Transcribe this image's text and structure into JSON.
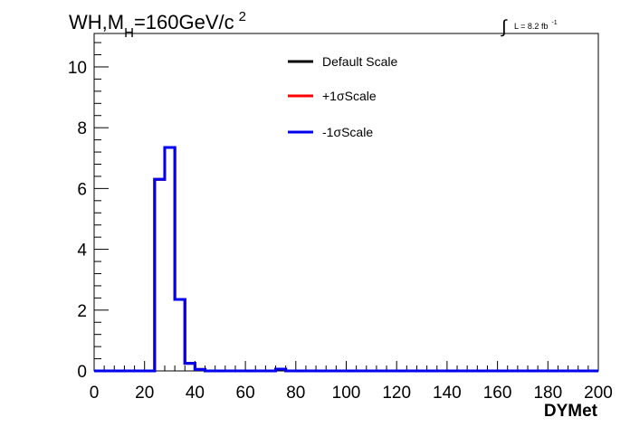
{
  "chart_data": {
    "type": "line",
    "style": "step-histogram",
    "title_parts": {
      "main": "WH,M",
      "sub": "H",
      "rest": "=160GeV/c",
      "sup": "2"
    },
    "lumi_parts": {
      "integral": "∫",
      "text": "L = 8.2 fb",
      "sup": "-1"
    },
    "xlabel": "DYMet",
    "ylabel": "",
    "xlim": [
      0,
      200
    ],
    "ylim": [
      0,
      11.1
    ],
    "x_ticks": [
      0,
      20,
      40,
      60,
      80,
      100,
      120,
      140,
      160,
      180,
      200
    ],
    "x_tick_labels": [
      "0",
      "20",
      "40",
      "60",
      "80",
      "100",
      "120",
      "140",
      "160",
      "180",
      "200"
    ],
    "y_ticks": [
      0,
      2,
      4,
      6,
      8,
      10
    ],
    "y_tick_labels": [
      "0",
      "2",
      "4",
      "6",
      "8",
      "10"
    ],
    "bin_edges": [
      0,
      4,
      8,
      12,
      16,
      20,
      24,
      28,
      32,
      36,
      40,
      44,
      48,
      52,
      56,
      60,
      64,
      68,
      72,
      76,
      80,
      84,
      88,
      92,
      96,
      100,
      104,
      108,
      112,
      116,
      120,
      124,
      128,
      132,
      136,
      140,
      144,
      148,
      152,
      156,
      160,
      164,
      168,
      172,
      176,
      180,
      184,
      188,
      192,
      196,
      200
    ],
    "series": [
      {
        "name": "Default Scale",
        "color": "#000000",
        "values": [
          0,
          0,
          0,
          0,
          0,
          0,
          6.3,
          7.35,
          2.35,
          0.25,
          0.05,
          0,
          0,
          0,
          0,
          0,
          0,
          0,
          0.06,
          0,
          0,
          0,
          0,
          0,
          0,
          0,
          0,
          0,
          0,
          0,
          0,
          0,
          0,
          0,
          0,
          0,
          0,
          0,
          0,
          0,
          0,
          0,
          0,
          0,
          0,
          0,
          0,
          0,
          0,
          0
        ]
      },
      {
        "name": "+1σScale",
        "color": "#ff0000",
        "values": [
          0,
          0,
          0,
          0,
          0,
          0,
          6.3,
          7.35,
          2.35,
          0.25,
          0.05,
          0,
          0,
          0,
          0,
          0,
          0,
          0,
          0.06,
          0,
          0,
          0,
          0,
          0,
          0,
          0,
          0,
          0,
          0,
          0,
          0,
          0,
          0,
          0,
          0,
          0,
          0,
          0,
          0,
          0,
          0,
          0,
          0,
          0,
          0,
          0,
          0,
          0,
          0,
          0
        ]
      },
      {
        "name": "-1σScale",
        "color": "#0000ee",
        "values": [
          0,
          0,
          0,
          0,
          0,
          0,
          6.3,
          7.35,
          2.35,
          0.25,
          0.05,
          0,
          0,
          0,
          0,
          0,
          0,
          0,
          0.06,
          0,
          0,
          0,
          0,
          0,
          0,
          0,
          0,
          0,
          0,
          0,
          0,
          0,
          0,
          0,
          0,
          0,
          0,
          0,
          0,
          0,
          0,
          0,
          0,
          0,
          0,
          0,
          0,
          0,
          0,
          0
        ]
      }
    ],
    "legend": {
      "placement": "top-center",
      "entries": [
        "Default Scale",
        "+1σScale",
        "-1σScale"
      ]
    },
    "grid": false
  }
}
